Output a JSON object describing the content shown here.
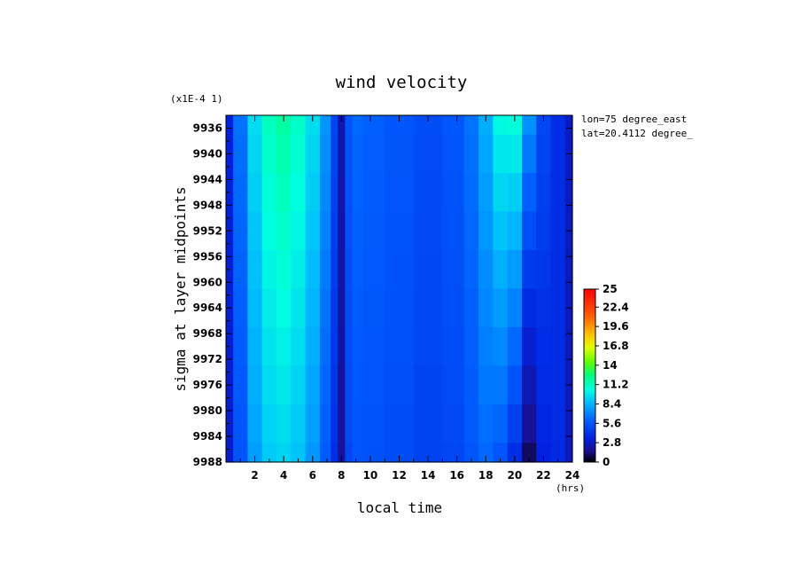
{
  "chart_data": {
    "type": "heatmap",
    "title": "wind  velocity",
    "xlabel": "local time",
    "x_unit": "(hrs)",
    "ylabel": "sigma at layer midpoints",
    "y_scale_note": "(x1E-4 1)",
    "annotations": [
      "lon=75 degree_east",
      "lat=20.4112 degree_"
    ],
    "xlim": [
      0,
      24
    ],
    "ylim": [
      9988,
      9934
    ],
    "x_ticks": [
      "2",
      "4",
      "6",
      "8",
      "10",
      "12",
      "14",
      "16",
      "18",
      "20",
      "22",
      "24"
    ],
    "y_ticks": [
      "9936",
      "9940",
      "9944",
      "9948",
      "9952",
      "9956",
      "9960",
      "9964",
      "9968",
      "9972",
      "9976",
      "9980",
      "9984",
      "9988"
    ],
    "colorbar": {
      "min": 0,
      "max": 25,
      "labels": [
        "25",
        "22.4",
        "19.6",
        "16.8",
        "14",
        "11.2",
        "8.4",
        "5.6",
        "2.8",
        "0"
      ]
    },
    "x": [
      0,
      1,
      2,
      3,
      4,
      5,
      6,
      7,
      7.5,
      8,
      8.5,
      9,
      10,
      12,
      14,
      16,
      17,
      18,
      19,
      20,
      21,
      22,
      23,
      24
    ],
    "y": [
      9934,
      9940,
      9946,
      9952,
      9958,
      9964,
      9970,
      9976,
      9982,
      9988
    ],
    "z_profiles": {
      "description": "",
      "columns_at_top": [
        3.5,
        6.5,
        9.5,
        11.2,
        11.8,
        11.0,
        9.5,
        7.5,
        5.0,
        2.2,
        5.5,
        6.2,
        6.0,
        5.6,
        5.2,
        5.6,
        6.5,
        8.2,
        10.4,
        10.6,
        7.4,
        5.0,
        4.0,
        2.8
      ],
      "columns_at_bottom": [
        3.0,
        5.5,
        7.8,
        9.0,
        9.3,
        8.8,
        7.6,
        5.8,
        4.0,
        1.8,
        5.0,
        5.5,
        5.4,
        5.2,
        4.8,
        5.0,
        5.6,
        6.2,
        5.6,
        4.0,
        1.0,
        3.5,
        3.8,
        2.6
      ]
    }
  }
}
